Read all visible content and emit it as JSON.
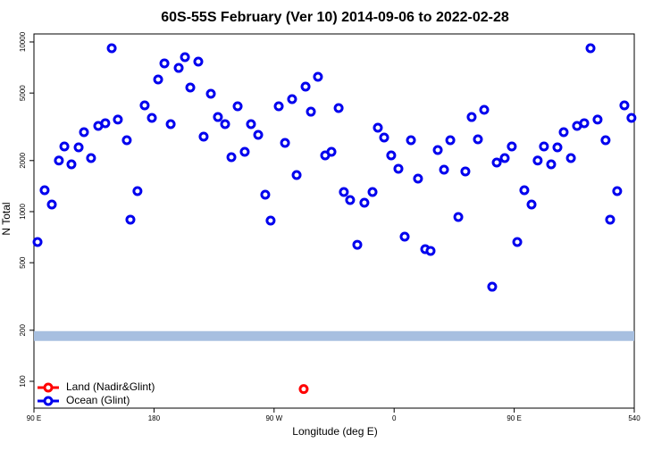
{
  "chart_data": {
    "type": "scatter",
    "title": "60S-55S February (Ver 10)   2014-09-06 to 2022-02-28",
    "x_label": "Longitude (deg E)",
    "y_label": "N Total",
    "log_y": true,
    "legend": "bottom-left",
    "xlim": [
      90,
      540
    ],
    "xticks": [
      {
        "value": 90,
        "label": "90 E"
      },
      180,
      {
        "value": 270,
        "label": "90 W"
      },
      {
        "value": 360,
        "label": "0"
      },
      {
        "value": 450,
        "label": "90 E"
      },
      540
    ],
    "ylim": [
      69.5,
      11150
    ],
    "yticks": [
      100,
      200,
      500,
      1000,
      2000,
      5000,
      10000
    ],
    "reference_band": {
      "value": 185,
      "color": "#a7bfe0"
    },
    "series": [
      {
        "name": "Land (Nadir&Glint)",
        "color": "#ff0000",
        "x": [
          292.2
        ],
        "values": [
          90
        ]
      },
      {
        "name": "Ocean (Glint)",
        "color": "#0000ee",
        "x": [
          92.7,
          98.0,
          103.4,
          108.7,
          112.8,
          118.1,
          123.5,
          127.5,
          132.8,
          138.2,
          143.5,
          148.3,
          152.9,
          159.6,
          162.3,
          167.6,
          173.0,
          178.4,
          183.1,
          187.8,
          192.5,
          198.5,
          203.2,
          207.2,
          213.2,
          217.2,
          222.6,
          227.9,
          233.3,
          238.0,
          242.7,
          248.0,
          252.7,
          258.1,
          263.4,
          267.4,
          273.5,
          278.2,
          283.5,
          286.9,
          293.6,
          297.6,
          302.9,
          308.3,
          313.0,
          318.4,
          322.3,
          327.0,
          332.4,
          337.7,
          343.8,
          347.8,
          352.5,
          357.8,
          363.2,
          367.9,
          372.6,
          377.9,
          383.3,
          387.3,
          392.7,
          397.4,
          402.1,
          408.1,
          413.4,
          418.1,
          422.8,
          427.5,
          433.5,
          436.9,
          442.9,
          448.2,
          452.3,
          457.6,
          463.0,
          467.6,
          472.3,
          477.7,
          482.4,
          487.1,
          492.5,
          497.1,
          502.5,
          507.2,
          512.5,
          518.5,
          521.9,
          527.2,
          532.6,
          537.9
        ],
        "values": [
          662,
          1337,
          1102,
          2000,
          2423,
          1901,
          2393,
          2940,
          2069,
          3199,
          3321,
          9180,
          3487,
          2636,
          897,
          1321,
          4230,
          3570,
          6010,
          7480,
          3280,
          7030,
          8140,
          5390,
          7660,
          2767,
          4950,
          3610,
          3280,
          2094,
          4180,
          2252,
          3280,
          2836,
          1259,
          886,
          4180,
          2543,
          4604,
          1644,
          5456,
          3882,
          6234,
          2146,
          2252,
          4080,
          1305,
          1170,
          638,
          1129,
          1305,
          3125,
          2734,
          2146,
          1790,
          712,
          2636,
          1565,
          601,
          587,
          2308,
          1768,
          2636,
          930,
          1726,
          3610,
          2668,
          3981,
          361,
          1946,
          2069,
          2423,
          662,
          1337,
          1102,
          2000,
          2423,
          1901,
          2393,
          2940,
          2069,
          3199,
          3321,
          9180,
          3487,
          2636,
          897,
          1321,
          4230,
          3570
        ]
      }
    ]
  }
}
